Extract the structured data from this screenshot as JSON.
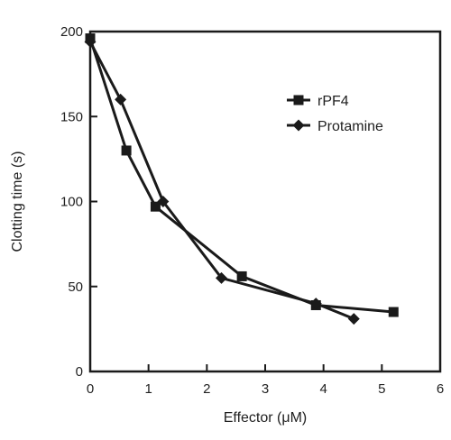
{
  "chart_data": {
    "type": "line",
    "title": "",
    "xlabel": "Effector (μM)",
    "ylabel": "Clotting time (s)",
    "xlim": [
      0,
      6
    ],
    "ylim": [
      0,
      200
    ],
    "xticks": [
      0,
      1,
      2,
      3,
      4,
      5,
      6
    ],
    "yticks": [
      0,
      50,
      100,
      150,
      200
    ],
    "grid": false,
    "legend_position": "top-right",
    "series": [
      {
        "name": "rPF4",
        "marker": "square",
        "x": [
          0,
          0.62,
          1.12,
          2.6,
          3.87,
          5.2
        ],
        "y": [
          196,
          130,
          97,
          56,
          39,
          35
        ]
      },
      {
        "name": "Protamine",
        "marker": "diamond",
        "x": [
          0,
          0.52,
          1.25,
          2.25,
          3.87,
          4.52
        ],
        "y": [
          194,
          160,
          100,
          55,
          40,
          31
        ]
      }
    ]
  }
}
